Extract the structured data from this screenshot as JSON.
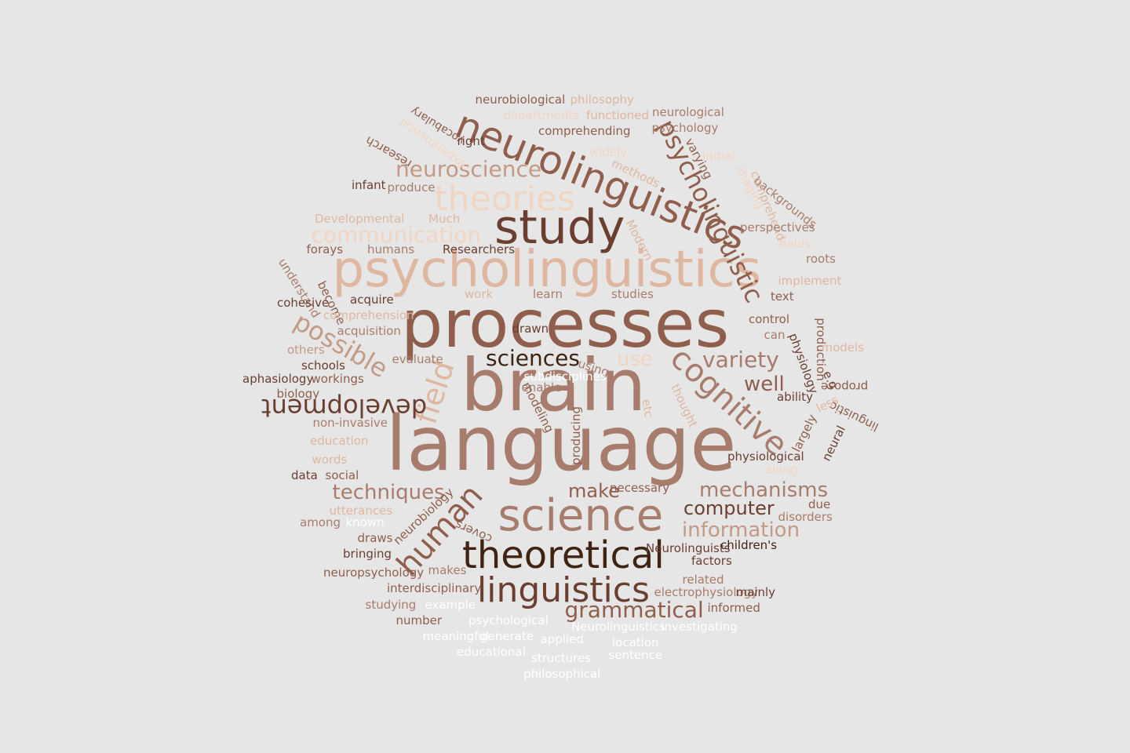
{
  "words": [
    {
      "text": "language",
      "weight": 96,
      "color": "#a87c6c"
    },
    {
      "text": "brain",
      "weight": 92,
      "color": "#a87c6c"
    },
    {
      "text": "processes",
      "weight": 84,
      "color": "#8f5e4c"
    },
    {
      "text": "psycholinguistics",
      "weight": 64,
      "color": "#dfb7a1"
    },
    {
      "text": "study",
      "weight": 60,
      "color": "#6b3e32"
    },
    {
      "text": "science",
      "weight": 56,
      "color": "#a87c6c"
    },
    {
      "text": "neurolinguistics",
      "weight": 50,
      "color": "#8f5e4c"
    },
    {
      "text": "theoretical",
      "weight": 48,
      "color": "#3f2414"
    },
    {
      "text": "theories",
      "weight": 44,
      "color": "#f1d5c3"
    },
    {
      "text": "linguistics",
      "weight": 44,
      "color": "#6b3e32"
    },
    {
      "text": "cognitive",
      "weight": 40,
      "color": "#a87c6c"
    },
    {
      "text": "human",
      "weight": 40,
      "color": "#8f5e4c"
    },
    {
      "text": "field",
      "weight": 38,
      "color": "#dfb7a1"
    },
    {
      "text": "development",
      "weight": 32,
      "color": "#6b3e32"
    },
    {
      "text": "possible",
      "weight": 32,
      "color": "#c29a86"
    },
    {
      "text": "psycholinguistic",
      "weight": 32,
      "color": "#8f5e4c"
    },
    {
      "text": "neuroscience",
      "weight": 28,
      "color": "#c29a86"
    },
    {
      "text": "communication",
      "weight": 28,
      "color": "#f1d5c3"
    },
    {
      "text": "variety",
      "weight": 28,
      "color": "#a87c6c"
    },
    {
      "text": "grammatical",
      "weight": 28,
      "color": "#8f5e4c"
    },
    {
      "text": "sciences",
      "weight": 28,
      "color": "#3f2414"
    },
    {
      "text": "well",
      "weight": 26,
      "color": "#8f5e4c"
    },
    {
      "text": "use",
      "weight": 26,
      "color": "#f1d5c3"
    },
    {
      "text": "techniques",
      "weight": 26,
      "color": "#a87c6c"
    },
    {
      "text": "mechanisms",
      "weight": 26,
      "color": "#a87c6c"
    },
    {
      "text": "information",
      "weight": 26,
      "color": "#c29a86"
    },
    {
      "text": "computer",
      "weight": 24,
      "color": "#6b3e32"
    },
    {
      "text": "make",
      "weight": 24,
      "color": "#8f5e4c"
    },
    {
      "text": "neurobiological",
      "weight": 15,
      "color": "#8f5e4c"
    },
    {
      "text": "philosophy",
      "weight": 15,
      "color": "#dfb7a1"
    },
    {
      "text": "neurological",
      "weight": 15,
      "color": "#a87c6c"
    },
    {
      "text": "vocabulary",
      "weight": 14,
      "color": "#8f5e4c"
    },
    {
      "text": "departments",
      "weight": 15,
      "color": "#f1d5c3"
    },
    {
      "text": "functioned",
      "weight": 15,
      "color": "#dfb7a1"
    },
    {
      "text": "psychology",
      "weight": 15,
      "color": "#a87c6c"
    },
    {
      "text": "comprehending",
      "weight": 15,
      "color": "#8f5e4c"
    },
    {
      "text": "right",
      "weight": 15,
      "color": "#6b3e32"
    },
    {
      "text": "experimental",
      "weight": 15,
      "color": "#f1d5c3"
    },
    {
      "text": "research",
      "weight": 15,
      "color": "#8f5e4c"
    },
    {
      "text": "widely",
      "weight": 15,
      "color": "#f1d5c3"
    },
    {
      "text": "varying",
      "weight": 15,
      "color": "#8f5e4c"
    },
    {
      "text": "Initial",
      "weight": 15,
      "color": "#f1d5c3"
    },
    {
      "text": "methods",
      "weight": 15,
      "color": "#dfb7a1"
    },
    {
      "text": "imaging",
      "weight": 15,
      "color": "#f1d5c3"
    },
    {
      "text": "backgrounds",
      "weight": 15,
      "color": "#a87c6c"
    },
    {
      "text": "comprehend",
      "weight": 15,
      "color": "#dfb7a1"
    },
    {
      "text": "infant",
      "weight": 15,
      "color": "#6b3e32"
    },
    {
      "text": "produce",
      "weight": 15,
      "color": "#a87c6c"
    },
    {
      "text": "Much",
      "weight": 15,
      "color": "#dfb7a1"
    },
    {
      "text": "Developmental",
      "weight": 15,
      "color": "#dfb7a1"
    },
    {
      "text": "perspectives",
      "weight": 15,
      "color": "#a87c6c"
    },
    {
      "text": "Modern",
      "weight": 15,
      "color": "#dfb7a1"
    },
    {
      "text": "fields",
      "weight": 15,
      "color": "#f1d5c3"
    },
    {
      "text": "forays",
      "weight": 15,
      "color": "#8f5e4c"
    },
    {
      "text": "humans",
      "weight": 15,
      "color": "#a87c6c"
    },
    {
      "text": "Researchers",
      "weight": 15,
      "color": "#6b3e32"
    },
    {
      "text": "roots",
      "weight": 15,
      "color": "#a87c6c"
    },
    {
      "text": "understand",
      "weight": 15,
      "color": "#a87c6c"
    },
    {
      "text": "become",
      "weight": 15,
      "color": "#8f5e4c"
    },
    {
      "text": "implement",
      "weight": 15,
      "color": "#dfb7a1"
    },
    {
      "text": "cohesive",
      "weight": 15,
      "color": "#6b3e32"
    },
    {
      "text": "acquire",
      "weight": 15,
      "color": "#6b3e32"
    },
    {
      "text": "work",
      "weight": 15,
      "color": "#dfb7a1"
    },
    {
      "text": "learn",
      "weight": 15,
      "color": "#a87c6c"
    },
    {
      "text": "studies",
      "weight": 15,
      "color": "#a87c6c"
    },
    {
      "text": "text",
      "weight": 15,
      "color": "#8f5e4c"
    },
    {
      "text": "comprehension",
      "weight": 15,
      "color": "#dfb7a1"
    },
    {
      "text": "control",
      "weight": 15,
      "color": "#8f5e4c"
    },
    {
      "text": "acquisition",
      "weight": 15,
      "color": "#a87c6c"
    },
    {
      "text": "drawn",
      "weight": 15,
      "color": "#6b3e32"
    },
    {
      "text": "can",
      "weight": 15,
      "color": "#a87c6c"
    },
    {
      "text": "production",
      "weight": 15,
      "color": "#8f5e4c"
    },
    {
      "text": "physiology",
      "weight": 15,
      "color": "#6b3e32"
    },
    {
      "text": "models",
      "weight": 15,
      "color": "#dfb7a1"
    },
    {
      "text": "others",
      "weight": 15,
      "color": "#c29a86"
    },
    {
      "text": "schools",
      "weight": 15,
      "color": "#6b3e32"
    },
    {
      "text": "evaluate",
      "weight": 15,
      "color": "#a87c6c"
    },
    {
      "text": "using",
      "weight": 15,
      "color": "#a87c6c"
    },
    {
      "text": "e.g",
      "weight": 15,
      "color": "#6b3e32"
    },
    {
      "text": "aphasiology",
      "weight": 15,
      "color": "#6b3e32"
    },
    {
      "text": "workings",
      "weight": 15,
      "color": "#8f5e4c"
    },
    {
      "text": "propose",
      "weight": 15,
      "color": "#8f5e4c"
    },
    {
      "text": "biology",
      "weight": 15,
      "color": "#8f5e4c"
    },
    {
      "text": "enable",
      "weight": 15,
      "color": "#a87c6c"
    },
    {
      "text": "etc",
      "weight": 15,
      "color": "#dfb7a1"
    },
    {
      "text": "thought",
      "weight": 15,
      "color": "#dfb7a1"
    },
    {
      "text": "ability",
      "weight": 15,
      "color": "#6b3e32"
    },
    {
      "text": "modeling",
      "weight": 15,
      "color": "#8f5e4c"
    },
    {
      "text": "less",
      "weight": 15,
      "color": "#dfb7a1"
    },
    {
      "text": "largely",
      "weight": 15,
      "color": "#8f5e4c"
    },
    {
      "text": "linguistic",
      "weight": 15,
      "color": "#8f5e4c"
    },
    {
      "text": "non-invasive",
      "weight": 15,
      "color": "#a87c6c"
    },
    {
      "text": "neural",
      "weight": 15,
      "color": "#6b3e32"
    },
    {
      "text": "education",
      "weight": 15,
      "color": "#dfb7a1"
    },
    {
      "text": "producing",
      "weight": 15,
      "color": "#8f5e4c"
    },
    {
      "text": "words",
      "weight": 15,
      "color": "#dfb7a1"
    },
    {
      "text": "physiological",
      "weight": 15,
      "color": "#6b3e32"
    },
    {
      "text": "data",
      "weight": 15,
      "color": "#6b3e32"
    },
    {
      "text": "social",
      "weight": 15,
      "color": "#8f5e4c"
    },
    {
      "text": "along",
      "weight": 15,
      "color": "#f1d5c3"
    },
    {
      "text": "necessary",
      "weight": 15,
      "color": "#8f5e4c"
    },
    {
      "text": "due",
      "weight": 15,
      "color": "#8f5e4c"
    },
    {
      "text": "utterances",
      "weight": 15,
      "color": "#dfb7a1"
    },
    {
      "text": "neurobiology",
      "weight": 15,
      "color": "#8f5e4c"
    },
    {
      "text": "disorders",
      "weight": 15,
      "color": "#a87c6c"
    },
    {
      "text": "among",
      "weight": 15,
      "color": "#a87c6c"
    },
    {
      "text": "known",
      "weight": 15,
      "color": "#ffffff"
    },
    {
      "text": "covers",
      "weight": 15,
      "color": "#8f5e4c"
    },
    {
      "text": "draws",
      "weight": 15,
      "color": "#8f5e4c"
    },
    {
      "text": "Neurolinguists",
      "weight": 15,
      "color": "#6b3e32"
    },
    {
      "text": "children's",
      "weight": 15,
      "color": "#3f2414"
    },
    {
      "text": "bringing",
      "weight": 15,
      "color": "#6b3e32"
    },
    {
      "text": "factors",
      "weight": 15,
      "color": "#6b3e32"
    },
    {
      "text": "neuropsychology",
      "weight": 15,
      "color": "#8f5e4c"
    },
    {
      "text": "makes",
      "weight": 15,
      "color": "#a87c6c"
    },
    {
      "text": "related",
      "weight": 15,
      "color": "#a87c6c"
    },
    {
      "text": "interdisciplinary",
      "weight": 15,
      "color": "#8f5e4c"
    },
    {
      "text": "electrophysiology",
      "weight": 15,
      "color": "#a87c6c"
    },
    {
      "text": "mainly",
      "weight": 15,
      "color": "#6b3e32"
    },
    {
      "text": "studying",
      "weight": 15,
      "color": "#a87c6c"
    },
    {
      "text": "example",
      "weight": 15,
      "color": "#ffffff"
    },
    {
      "text": "informed",
      "weight": 15,
      "color": "#8f5e4c"
    },
    {
      "text": "number",
      "weight": 15,
      "color": "#8f5e4c"
    },
    {
      "text": "psychological",
      "weight": 15,
      "color": "#ffffff"
    },
    {
      "text": "Neurolinguistics",
      "weight": 15,
      "color": "#ffffff"
    },
    {
      "text": "investigating",
      "weight": 15,
      "color": "#ffffff"
    },
    {
      "text": "meaningful",
      "weight": 15,
      "color": "#ffffff"
    },
    {
      "text": "generate",
      "weight": 15,
      "color": "#ffffff"
    },
    {
      "text": "applied",
      "weight": 15,
      "color": "#ffffff"
    },
    {
      "text": "location",
      "weight": 15,
      "color": "#ffffff"
    },
    {
      "text": "educational",
      "weight": 15,
      "color": "#ffffff"
    },
    {
      "text": "sentence",
      "weight": 15,
      "color": "#ffffff"
    },
    {
      "text": "structures",
      "weight": 15,
      "color": "#ffffff"
    },
    {
      "text": "philosophical",
      "weight": 15,
      "color": "#ffffff"
    },
    {
      "text": "subdisciplines",
      "weight": 15,
      "color": "#ffffff"
    }
  ]
}
